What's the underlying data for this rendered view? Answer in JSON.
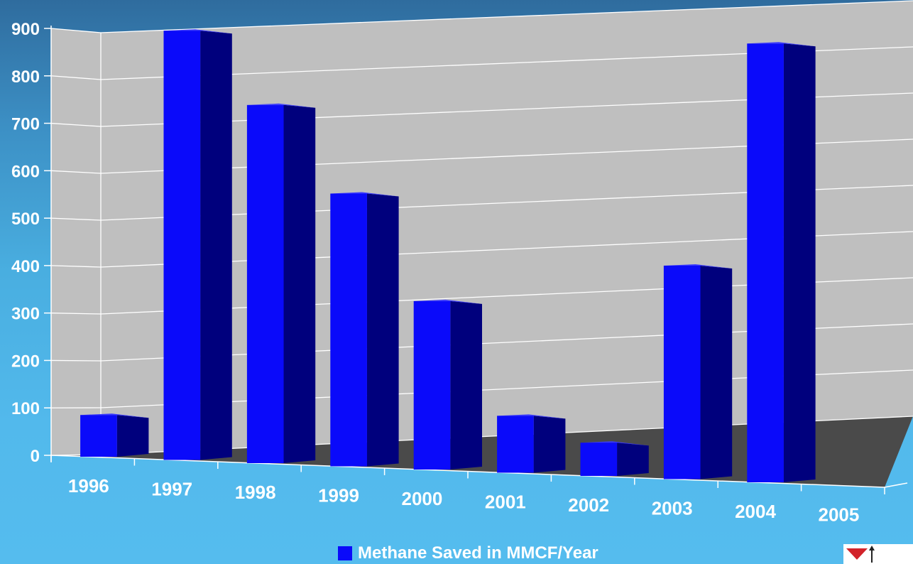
{
  "chart_data": {
    "type": "bar",
    "categories": [
      "1996",
      "1997",
      "1998",
      "1999",
      "2000",
      "2001",
      "2002",
      "2003",
      "2004",
      "2005"
    ],
    "series": [
      {
        "name": "Methane Saved in MMCF/Year",
        "values": [
          88,
          905,
          755,
          575,
          355,
          120,
          70,
          450,
          925,
          0
        ]
      }
    ],
    "title": "",
    "xlabel": "",
    "ylabel": "",
    "ylim": [
      0,
      900
    ],
    "yticks": [
      "0",
      "100",
      "200",
      "300",
      "400",
      "500",
      "600",
      "700",
      "800",
      "900"
    ],
    "grid": true,
    "legend": "bottom-center",
    "style": "3d-column"
  },
  "colors": {
    "bar_front": "#0a0afa",
    "bar_side": "#00007d",
    "bar_top": "#3a3aff",
    "wall": "#bfbfbf",
    "floor": "#4a4a4a",
    "gridline": "#ffffff",
    "text": "#ffffff"
  },
  "logo_icon": "company-logo-icon"
}
